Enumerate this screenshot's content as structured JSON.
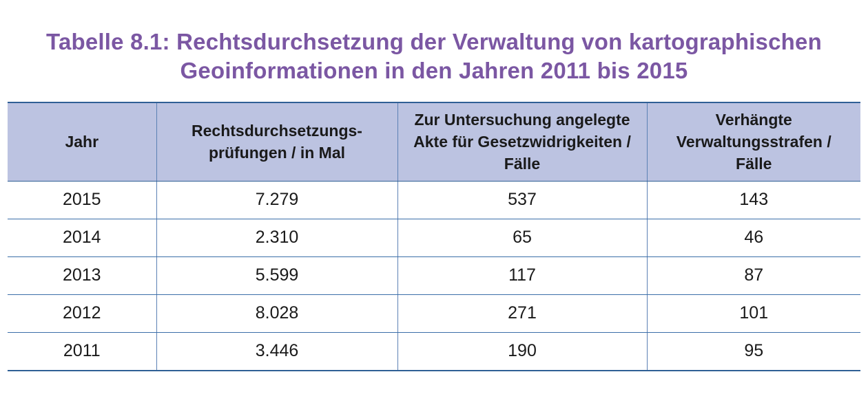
{
  "title": {
    "line1": "Tabelle 8.1: Rechtsdurchsetzung der Verwaltung von kartographischen",
    "line2": "Geoinformationen in den Jahren 2011 bis 2015"
  },
  "table": {
    "headers": [
      [
        "Jahr"
      ],
      [
        "Rechtsdurchsetzungs-",
        "prüfungen / in Mal"
      ],
      [
        "Zur Untersuchung angelegte",
        "Akte für Gesetzwidrigkeiten /",
        "Fälle"
      ],
      [
        "Verhängte",
        "Verwaltungsstrafen /",
        "Fälle"
      ]
    ],
    "rows": [
      [
        "2015",
        "7.279",
        "537",
        "143"
      ],
      [
        "2014",
        "2.310",
        "65",
        "46"
      ],
      [
        "2013",
        "5.599",
        "117",
        "87"
      ],
      [
        "2012",
        "8.028",
        "271",
        "101"
      ],
      [
        "2011",
        "3.446",
        "190",
        "95"
      ]
    ]
  },
  "colors": {
    "title": "#7b57a3",
    "header_bg": "#bcc3e1",
    "rule": "#2f5f95"
  }
}
